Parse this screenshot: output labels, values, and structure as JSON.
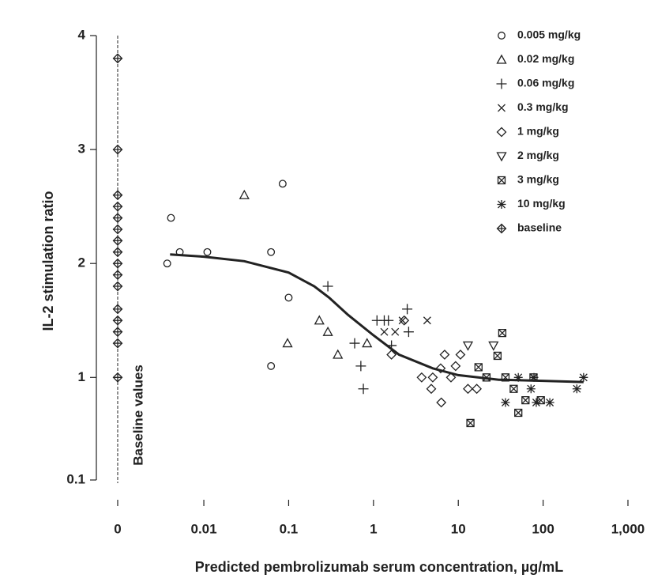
{
  "chart_data": {
    "type": "scatter",
    "y_label": "IL-2 stimulation ratio",
    "x_label": "Predicted pembrolizumab serum concentration, µg/mL",
    "annotation": "Baseline values",
    "x_scale": "log",
    "xlim": [
      0.002,
      1000
    ],
    "xticks": [
      0,
      0.01,
      0.1,
      1,
      10,
      100,
      {
        "value": 1000,
        "label": "1,000"
      }
    ],
    "ylim": [
      0.1,
      4
    ],
    "yticks": [
      0.1,
      1,
      2,
      3,
      4
    ],
    "legend": "top-right",
    "color": "#222222",
    "series": [
      {
        "name": "0.005 mg/kg",
        "marker": "circle",
        "x": [
          0.0037,
          0.0041,
          0.0052,
          0.011,
          0.062,
          0.085,
          0.062,
          0.1
        ],
        "values": [
          2.0,
          2.4,
          2.1,
          2.1,
          2.1,
          2.7,
          1.1,
          1.7
        ]
      },
      {
        "name": "0.02 mg/kg",
        "marker": "triangle",
        "x": [
          0.03,
          0.097,
          0.23,
          0.29,
          0.38,
          0.84
        ],
        "values": [
          2.6,
          1.3,
          1.5,
          1.4,
          1.2,
          1.3
        ]
      },
      {
        "name": "0.06 mg/kg",
        "marker": "plus",
        "x": [
          0.29,
          0.6,
          0.71,
          0.76,
          1.1,
          1.34,
          1.5,
          1.63,
          2.5,
          2.6
        ],
        "values": [
          1.8,
          1.3,
          1.1,
          0.9,
          1.5,
          1.5,
          1.5,
          1.28,
          1.6,
          1.4
        ]
      },
      {
        "name": "0.3 mg/kg",
        "marker": "x",
        "x": [
          1.34,
          1.8,
          2.2,
          4.3
        ],
        "values": [
          1.4,
          1.4,
          1.5,
          1.5
        ]
      },
      {
        "name": "1 mg/kg",
        "marker": "diamond",
        "x": [
          1.63,
          2.3,
          3.7,
          4.8,
          5,
          6.3,
          6.9,
          8.2,
          9.3,
          10.6,
          13,
          16.5,
          6.2
        ],
        "values": [
          1.2,
          1.5,
          1.0,
          0.9,
          1.0,
          0.78,
          1.2,
          1.0,
          1.1,
          1.2,
          0.9,
          0.9,
          1.08
        ]
      },
      {
        "name": "2 mg/kg",
        "marker": "triangle-down",
        "x": [
          13,
          26
        ],
        "values": [
          1.28,
          1.28
        ]
      },
      {
        "name": "3 mg/kg",
        "marker": "square-x",
        "x": [
          13.9,
          17.3,
          21.5,
          29,
          33,
          36,
          45,
          51,
          62,
          77,
          94
        ],
        "values": [
          0.6,
          1.09,
          1.0,
          1.19,
          1.39,
          1.0,
          0.9,
          0.69,
          0.8,
          1.0,
          0.8
        ]
      },
      {
        "name": "10 mg/kg",
        "marker": "asterisk",
        "x": [
          36,
          51,
          72,
          78,
          83,
          120,
          250,
          300
        ],
        "values": [
          0.78,
          1.0,
          0.9,
          1.0,
          0.78,
          0.78,
          0.9,
          1.0
        ]
      },
      {
        "name": "baseline",
        "marker": "diamond-plus",
        "values": [
          3.8,
          3.0,
          2.6,
          2.5,
          2.4,
          2.3,
          2.2,
          2.1,
          2.0,
          1.9,
          1.8,
          1.6,
          1.5,
          1.4,
          1.3,
          1.0
        ]
      }
    ],
    "fit_curve": {
      "x": [
        0.004,
        0.01,
        0.03,
        0.1,
        0.2,
        0.3,
        0.5,
        1,
        2,
        5,
        10,
        30,
        100,
        300
      ],
      "values": [
        2.08,
        2.06,
        2.02,
        1.92,
        1.8,
        1.7,
        1.55,
        1.37,
        1.2,
        1.08,
        1.02,
        0.98,
        0.97,
        0.96
      ]
    }
  }
}
